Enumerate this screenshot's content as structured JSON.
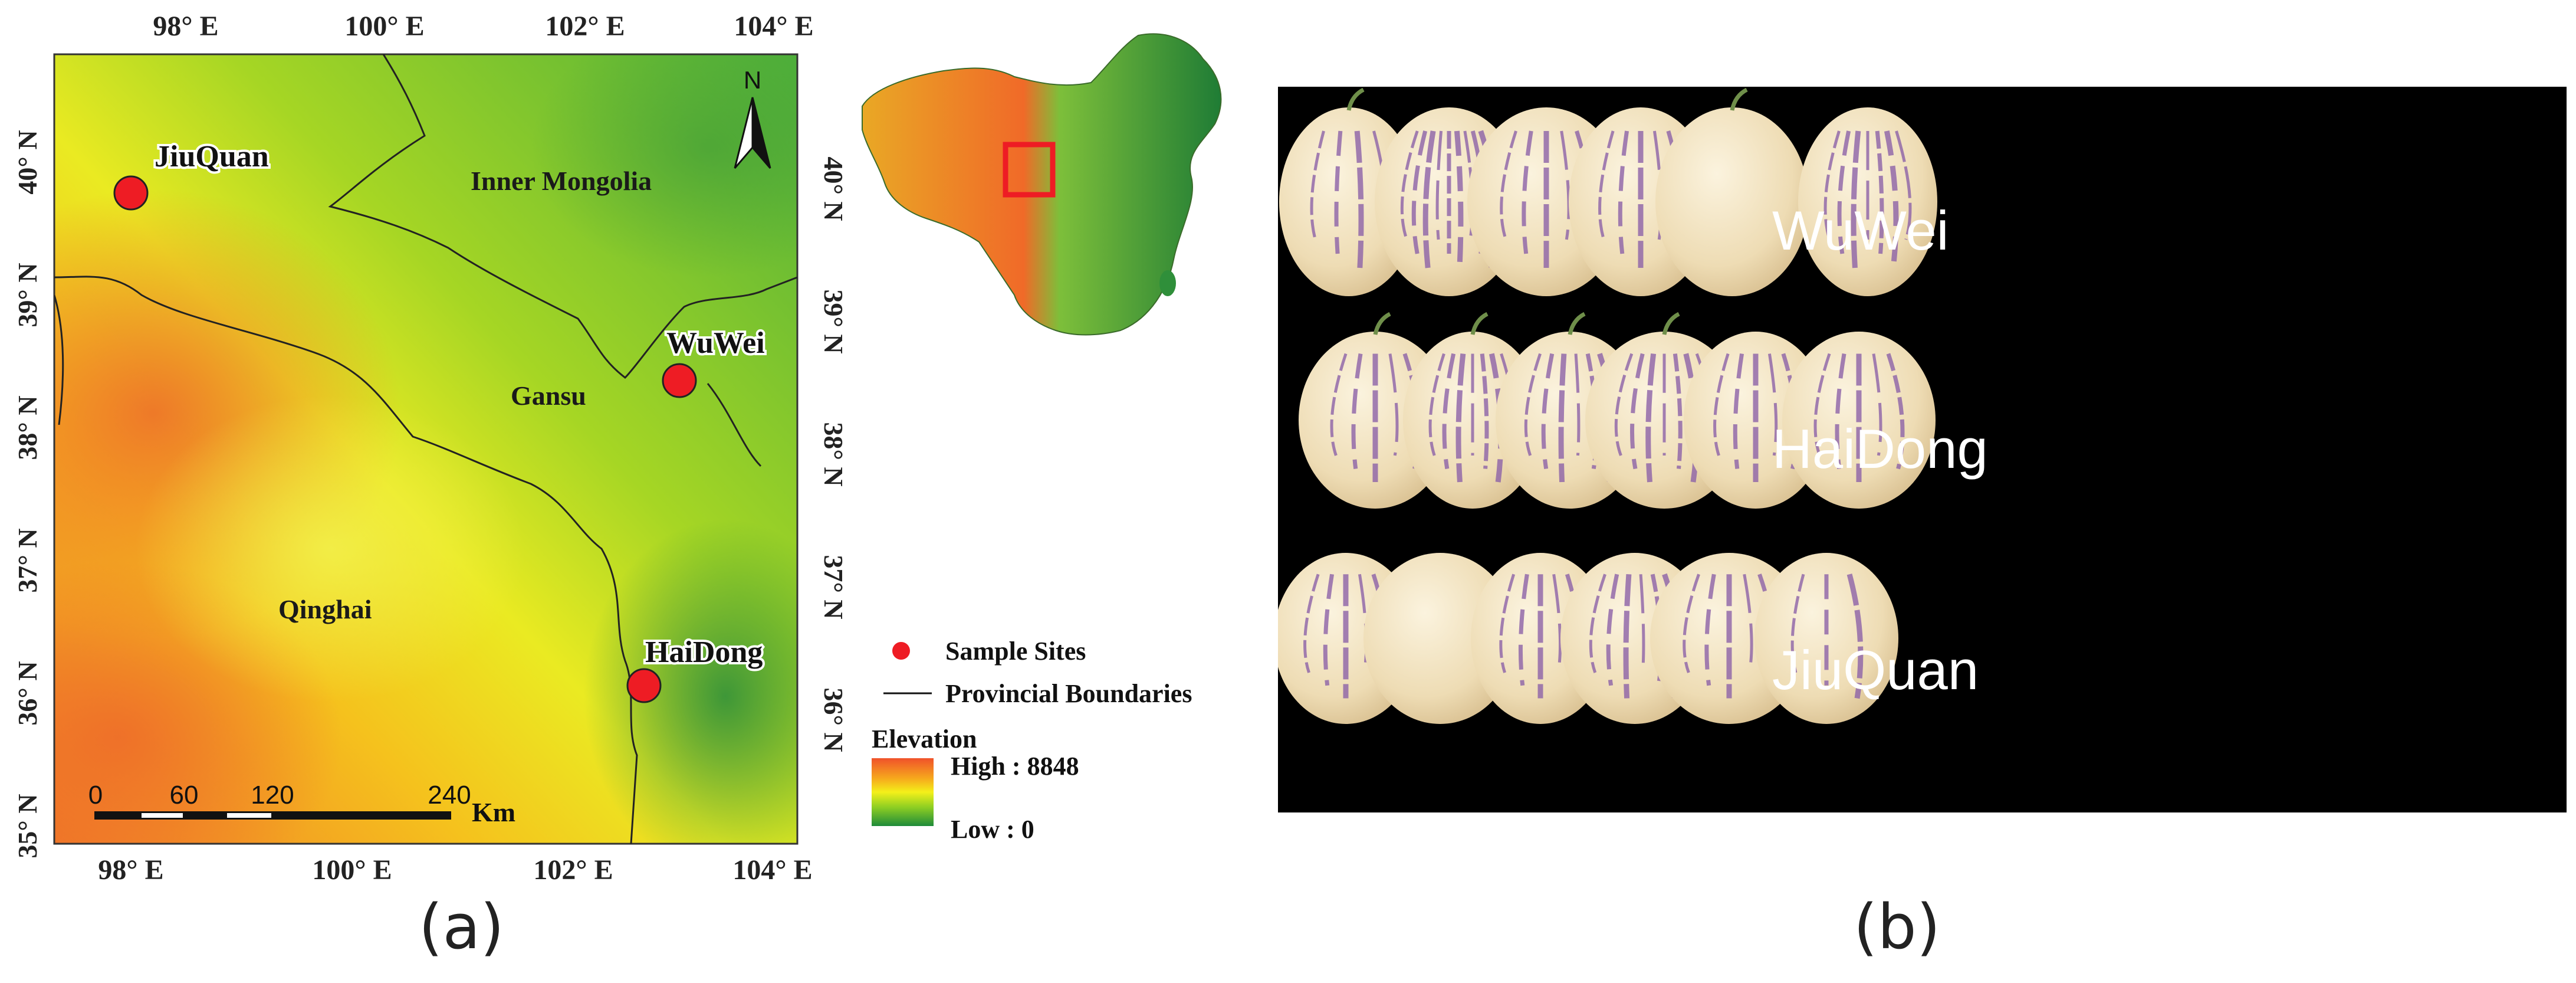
{
  "panel_a": {
    "sub_label": "(a)",
    "map": {
      "top_axis_labels": [
        "98° E",
        "100° E",
        "102° E",
        "104° E"
      ],
      "bottom_axis_labels": [
        "98° E",
        "100° E",
        "102° E",
        "104° E"
      ],
      "left_axis_labels": [
        "40° N",
        "39° N",
        "38° N",
        "37° N",
        "36° N",
        "35° N"
      ],
      "right_axis_labels": [
        "40° N",
        "39° N",
        "38° N",
        "37° N",
        "36° N"
      ],
      "north_arrow": "N",
      "region_labels": {
        "inner_mongolia": "Inner Mongolia",
        "gansu": "Gansu",
        "qinghai": "Qinghai"
      },
      "sites": [
        {
          "name": "JiuQuan",
          "lon": 98.0,
          "lat": 39.8
        },
        {
          "name": "WuWei",
          "lon": 103.1,
          "lat": 38.4
        },
        {
          "name": "HaiDong",
          "lon": 102.8,
          "lat": 36.1
        }
      ],
      "scale_bar": {
        "ticks": [
          "0",
          "60",
          "120",
          "240"
        ],
        "unit": "Km"
      }
    },
    "legend": {
      "sample_sites": "Sample Sites",
      "provincial_boundaries": "Provincial Boundaries",
      "elevation_title": "Elevation",
      "high": "High : 8848",
      "low": "Low : 0"
    },
    "colors": {
      "elevation_high": "#f0522a",
      "elevation_mid_high": "#f6a91c",
      "elevation_mid": "#f4f01a",
      "elevation_mid_low": "#8fcf22",
      "elevation_low": "#1e8b3a",
      "site_marker": "#ee1c24",
      "inset_box": "#ee1c24"
    }
  },
  "panel_b": {
    "sub_label": "(b)",
    "rows": [
      {
        "label": "WuWei"
      },
      {
        "label": "HaiDong"
      },
      {
        "label": "JiuQuan"
      }
    ],
    "colors": {
      "background": "#000000",
      "fruit_skin": "#eee2c6",
      "stripe": "#8c62a8"
    }
  }
}
